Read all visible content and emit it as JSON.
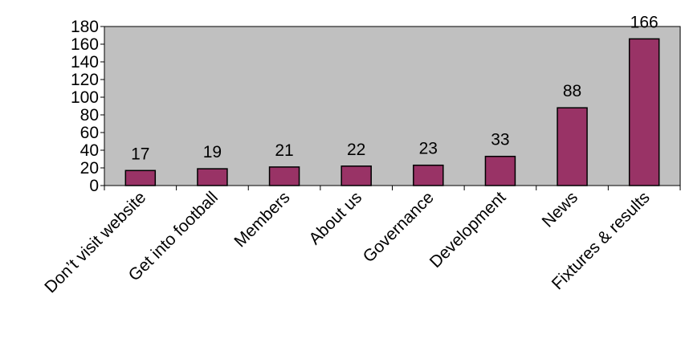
{
  "chart_data": {
    "type": "bar",
    "categories": [
      "Don’t visit website",
      "Get into football",
      "Members",
      "About us",
      "Governance",
      "Development",
      "News",
      "Fixtures & results"
    ],
    "values": [
      17,
      19,
      21,
      22,
      23,
      33,
      88,
      166
    ],
    "color": "#993366",
    "ylim": [
      0,
      180
    ],
    "yticks": [
      0,
      20,
      40,
      60,
      80,
      100,
      120,
      140,
      160,
      180
    ],
    "grid": false
  }
}
